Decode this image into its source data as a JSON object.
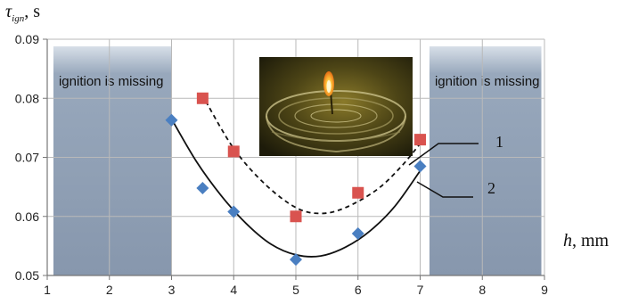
{
  "chart_data": {
    "type": "scatter",
    "title": "",
    "xlabel_var": "h",
    "xlabel_unit": ", mm",
    "ylabel_var": "τ",
    "ylabel_sub": "ign",
    "ylabel_unit": ", s",
    "xlim": [
      1,
      9
    ],
    "ylim": [
      0.05,
      0.09
    ],
    "x_ticks": [
      "1",
      "2",
      "3",
      "4",
      "5",
      "6",
      "7",
      "8",
      "9"
    ],
    "y_ticks": [
      "0.05",
      "0.06",
      "0.07",
      "0.08",
      "0.09"
    ],
    "grid": true,
    "shaded_regions": [
      {
        "x": [
          1.1,
          3.0
        ],
        "label": "ignition is missing"
      },
      {
        "x": [
          7.15,
          8.95
        ],
        "label": "ignition is missing"
      }
    ],
    "series": [
      {
        "name": "1",
        "marker": "square",
        "color": "#d9534f",
        "x": [
          3.5,
          4.0,
          5.0,
          6.0,
          7.0
        ],
        "y": [
          0.08,
          0.071,
          0.06,
          0.064,
          0.073
        ],
        "fit": "dashed",
        "fit_points": [
          [
            3.55,
            0.0795
          ],
          [
            4.0,
            0.0715
          ],
          [
            4.5,
            0.0655
          ],
          [
            5.0,
            0.0615
          ],
          [
            5.4,
            0.0605
          ],
          [
            5.8,
            0.0615
          ],
          [
            6.3,
            0.0645
          ],
          [
            6.7,
            0.0685
          ],
          [
            7.05,
            0.073
          ]
        ]
      },
      {
        "name": "2",
        "marker": "diamond",
        "color": "#4a7fc1",
        "x": [
          3.0,
          3.5,
          4.0,
          5.0,
          6.0,
          7.0
        ],
        "y": [
          0.0763,
          0.0648,
          0.0608,
          0.0527,
          0.0571,
          0.0685
        ],
        "fit": "solid",
        "fit_points": [
          [
            3.0,
            0.0765
          ],
          [
            3.4,
            0.0693
          ],
          [
            3.8,
            0.0635
          ],
          [
            4.2,
            0.0588
          ],
          [
            4.6,
            0.0553
          ],
          [
            5.0,
            0.0535
          ],
          [
            5.4,
            0.0533
          ],
          [
            5.8,
            0.0548
          ],
          [
            6.2,
            0.0576
          ],
          [
            6.6,
            0.0618
          ],
          [
            7.05,
            0.0685
          ]
        ]
      }
    ],
    "curve_labels": [
      "1",
      "2"
    ],
    "inset_photo": "candle-flame-in-glass-dish"
  }
}
